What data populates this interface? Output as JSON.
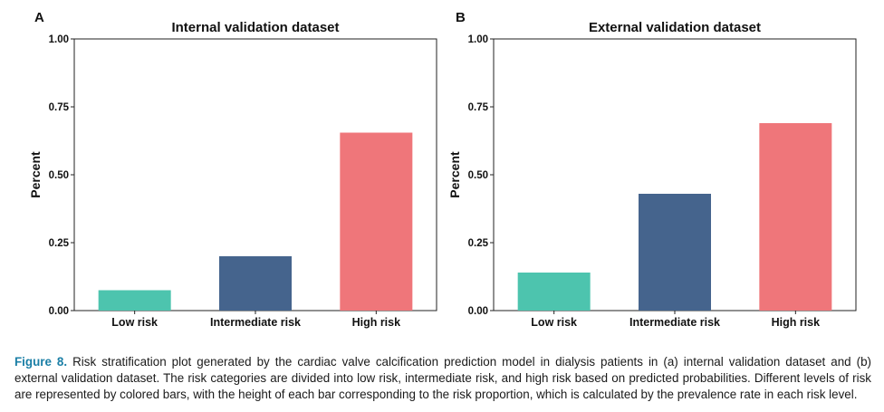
{
  "panels": [
    {
      "panel_label": "A",
      "title": "Internal validation dataset",
      "ylabel": "Percent",
      "categories": [
        "Low risk",
        "Intermediate risk",
        "High risk"
      ],
      "values": [
        0.075,
        0.2,
        0.655
      ],
      "colors": [
        "#4dc4ae",
        "#45648d",
        "#ef767a"
      ],
      "ylim": [
        0,
        1
      ],
      "yticks": [
        "0.00",
        "0.25",
        "0.50",
        "0.75",
        "1.00"
      ]
    },
    {
      "panel_label": "B",
      "title": "External validation dataset",
      "ylabel": "Percent",
      "categories": [
        "Low risk",
        "Intermediate risk",
        "High risk"
      ],
      "values": [
        0.14,
        0.43,
        0.69
      ],
      "colors": [
        "#4dc4ae",
        "#45648d",
        "#ef767a"
      ],
      "ylim": [
        0,
        1
      ],
      "yticks": [
        "0.00",
        "0.25",
        "0.50",
        "0.75",
        "1.00"
      ]
    }
  ],
  "chart_data": [
    {
      "type": "bar",
      "title": "Internal validation dataset",
      "categories": [
        "Low risk",
        "Intermediate risk",
        "High risk"
      ],
      "values": [
        0.075,
        0.2,
        0.655
      ],
      "xlabel": "",
      "ylabel": "Percent",
      "ylim": [
        0,
        1
      ],
      "grid": false,
      "legend": "none"
    },
    {
      "type": "bar",
      "title": "External validation dataset",
      "categories": [
        "Low risk",
        "Intermediate risk",
        "High risk"
      ],
      "values": [
        0.14,
        0.43,
        0.69
      ],
      "xlabel": "",
      "ylabel": "Percent",
      "ylim": [
        0,
        1
      ],
      "grid": false,
      "legend": "none"
    }
  ],
  "caption": {
    "label": "Figure 8.",
    "text": "Risk stratification plot generated by the cardiac valve calcification prediction model in dialysis patients in (a) internal validation dataset and (b) external validation dataset. The risk categories are divided into low risk, intermediate risk, and high risk based on predicted probabilities. Different levels of risk are represented by colored bars, with the height of each bar corresponding to the risk proportion, which is calculated by the prevalence rate in each risk level."
  }
}
